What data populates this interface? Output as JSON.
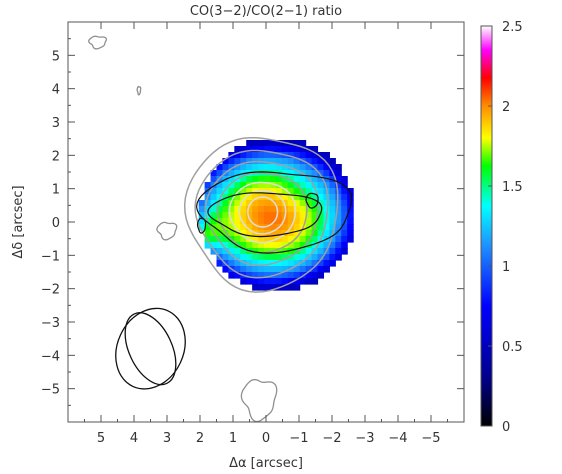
{
  "chart_data": {
    "type": "heatmap",
    "title": "CO(3−2)/CO(2−1) ratio",
    "xlabel": "Δα [arcsec]",
    "ylabel": "Δδ [arcsec]",
    "xlim": [
      6,
      -6
    ],
    "ylim": [
      -6,
      6
    ],
    "x_ticks": [
      5,
      4,
      3,
      2,
      1,
      0,
      -1,
      -2,
      -3,
      -4,
      -5
    ],
    "x_tick_labels": [
      "5",
      "4",
      "3",
      "2",
      "1",
      "0",
      "−1",
      "−2",
      "−3",
      "−4",
      "−5"
    ],
    "y_ticks": [
      5,
      4,
      3,
      2,
      1,
      0,
      -1,
      -2,
      -3,
      -4,
      -5
    ],
    "y_tick_labels": [
      "5",
      "4",
      "3",
      "2",
      "1",
      "0",
      "−1",
      "−2",
      "−3",
      "−4",
      "−5"
    ],
    "colorbar": {
      "range": [
        0,
        2.5
      ],
      "ticks": [
        0,
        0.5,
        1,
        1.5,
        2,
        2.5
      ],
      "tick_labels": [
        "0",
        "0.5",
        "1",
        "1.5",
        "2",
        "2.5"
      ],
      "colors": [
        "#000000",
        "#00008b",
        "#0000ff",
        "#1e90ff",
        "#00ffff",
        "#00ff00",
        "#ffff00",
        "#ff8c00",
        "#ff0000",
        "#ff00ff",
        "#ffffff"
      ]
    },
    "beams": [
      {
        "center": [
          3.5,
          -3.8
        ],
        "major": 2.5,
        "minor": 2.0,
        "pa": 25
      },
      {
        "center": [
          3.5,
          -3.8
        ],
        "major": 2.3,
        "minor": 1.3,
        "pa": -25
      }
    ]
  }
}
